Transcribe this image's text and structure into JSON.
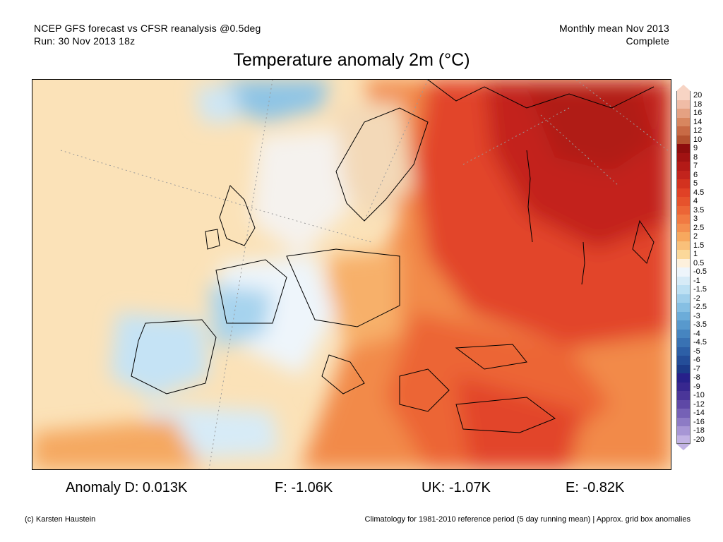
{
  "header": {
    "left_line1": "NCEP GFS forecast vs CFSR reanalysis @0.5deg",
    "left_line2": "Run: 30 Nov 2013 18z",
    "right_line1": "Monthly mean Nov 2013",
    "right_line2": "Complete"
  },
  "title": "Temperature anomaly 2m (°C)",
  "legend": {
    "levels": [
      "20",
      "18",
      "16",
      "14",
      "12",
      "10",
      "9",
      "8",
      "7",
      "6",
      "5",
      "4.5",
      "4",
      "3.5",
      "3",
      "2.5",
      "2",
      "1.5",
      "1",
      "0.5",
      "-0.5",
      "-1",
      "-1.5",
      "-2",
      "-2.5",
      "-3",
      "-3.5",
      "-4",
      "-4.5",
      "-5",
      "-6",
      "-7",
      "-8",
      "-9",
      "-10",
      "-12",
      "-14",
      "-16",
      "-18",
      "-20"
    ],
    "colors": [
      "#f7d4c4",
      "#f0bca6",
      "#e5a182",
      "#d8865f",
      "#c86a45",
      "#b4512f",
      "#8e0d0d",
      "#a11212",
      "#b31a17",
      "#c2241d",
      "#d3321f",
      "#e04126",
      "#e6522c",
      "#ec6536",
      "#f17a42",
      "#f48f4f",
      "#f7a85e",
      "#f9c07a",
      "#fbd89a",
      "#fdf0dc",
      "#eef5fb",
      "#d7ebf7",
      "#bde0f3",
      "#a0cfeb",
      "#86bfe3",
      "#6cacd9",
      "#5899cd",
      "#4685c0",
      "#3972b3",
      "#2d5fa6",
      "#244d98",
      "#1c3b89",
      "#27208a",
      "#37278f",
      "#4a3699",
      "#5e48a6",
      "#7561b6",
      "#8d7bc5",
      "#a796d5",
      "#c2b3e4"
    ]
  },
  "stats": {
    "d": "Anomaly D: 0.013K",
    "f": "F: -1.06K",
    "uk": "UK: -1.07K",
    "e": "E: -0.82K"
  },
  "footer": {
    "left": "(c) Karsten Haustein",
    "right": "Climatology for 1981-2010 reference period (5 day running mean) | Approx. grid box anomalies"
  }
}
